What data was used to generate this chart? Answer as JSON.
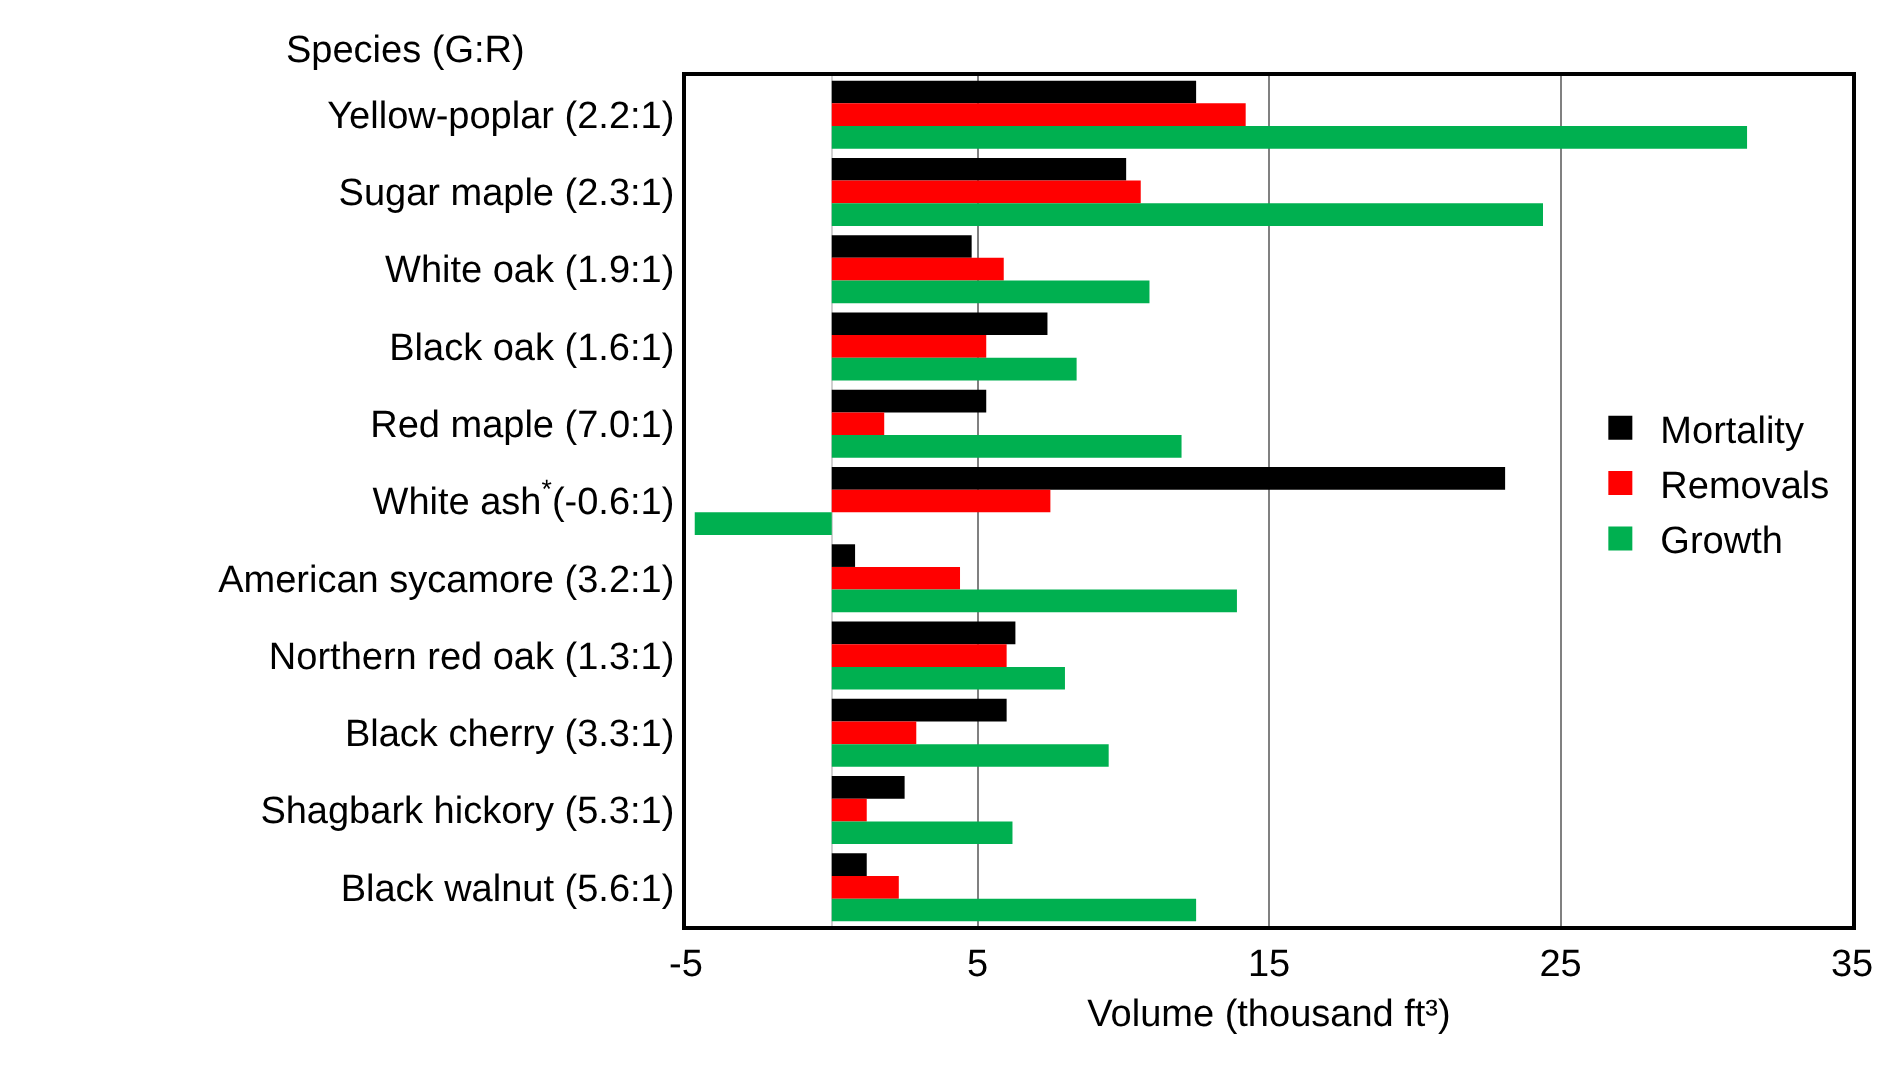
{
  "chart_data": {
    "type": "bar",
    "orientation": "horizontal",
    "ylabel": "Species (G:R)",
    "xlabel": "Volume (thousand ft³)",
    "categories": [
      "Yellow-poplar (2.2:1)",
      "Sugar maple (2.3:1)",
      "White oak (1.9:1)",
      "Black oak (1.6:1)",
      "Red maple (7.0:1)",
      "White ash$^{*}$(-0.6:1)",
      "American sycamore (3.2:1)",
      "Northern red oak (1.3:1)",
      "Black cherry (3.3:1)",
      "Shagbark hickory (5.3:1)",
      "Black walnut (5.6:1)"
    ],
    "series": [
      {
        "name": "Mortality",
        "color": "#000000",
        "values": [
          12.5,
          10.1,
          4.8,
          7.4,
          5.3,
          23.1,
          0.8,
          6.3,
          6.0,
          2.5,
          1.2
        ]
      },
      {
        "name": "Removals",
        "color": "#ff0000",
        "values": [
          14.2,
          10.6,
          5.9,
          5.3,
          1.8,
          7.5,
          4.4,
          6.0,
          2.9,
          1.2,
          2.3
        ]
      },
      {
        "name": "Growth",
        "color": "#00b050",
        "values": [
          31.4,
          24.4,
          10.9,
          8.4,
          12.0,
          -4.7,
          13.9,
          8.0,
          9.5,
          6.2,
          12.5
        ]
      }
    ],
    "xlim": [
      -5,
      35
    ],
    "xticks": [
      -5,
      5,
      15,
      25,
      35
    ],
    "grid": "x",
    "legend": "right"
  }
}
